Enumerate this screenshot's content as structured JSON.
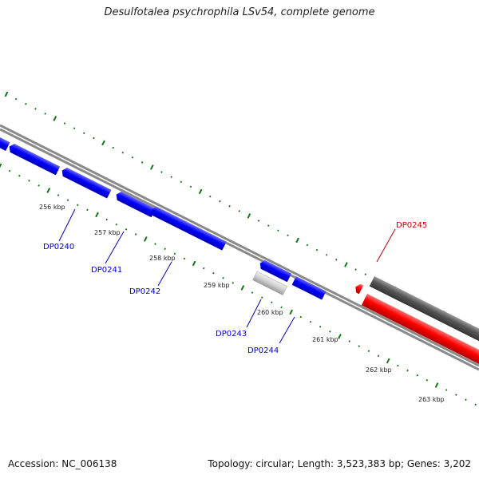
{
  "title": "Desulfotalea psychrophila LSv54, complete genome",
  "accession": "Accession: NC_006138",
  "footer": "Topology: circular; Length: 3,523,383 bp; Genes: 3,202",
  "colors": {
    "forward_gene": "#0000ff",
    "reverse_gene": "#0000ff",
    "pseudo_gene": "#cccccc",
    "rna_gene": "#ff0000",
    "dark_gene": "#555555",
    "backbone": "#888888",
    "tick": "#117711",
    "label_blue": "#0000cc",
    "label_red": "#cc0000"
  },
  "scale_ticks": [
    "256 kbp",
    "257 kbp",
    "258 kbp",
    "259 kbp",
    "260 kbp",
    "261 kbp",
    "262 kbp",
    "263 kbp"
  ],
  "gene_labels": [
    {
      "name": "DP0240",
      "color": "blue"
    },
    {
      "name": "DP0241",
      "color": "blue"
    },
    {
      "name": "DP0242",
      "color": "blue"
    },
    {
      "name": "DP0243",
      "color": "blue"
    },
    {
      "name": "DP0244",
      "color": "blue"
    },
    {
      "name": "DP0245",
      "color": "red"
    }
  ]
}
